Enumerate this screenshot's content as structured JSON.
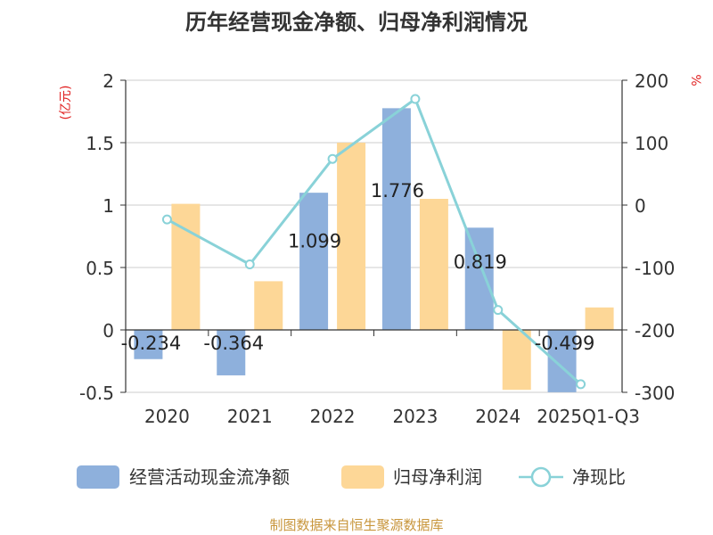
{
  "chart_data": {
    "type": "bar",
    "title": "历年经营现金净额、归母净利润情况",
    "categories": [
      "2020",
      "2021",
      "2022",
      "2023",
      "2024",
      "2025Q1-Q3"
    ],
    "y_left": {
      "unit": "(亿元)",
      "ticks": [
        "2",
        "1.5",
        "1",
        "0.5",
        "0",
        "-0.5"
      ],
      "range": [
        -0.5,
        2
      ]
    },
    "y_right": {
      "unit": "%",
      "ticks": [
        "200",
        "100",
        "0",
        "-100",
        "-200",
        "-300"
      ],
      "range": [
        -300,
        200
      ]
    },
    "series": [
      {
        "name": "经营活动现金流净额",
        "type": "bar",
        "axis": "left",
        "color": "#8eb0dc",
        "values": [
          -0.234,
          -0.364,
          1.099,
          1.776,
          0.819,
          -0.499
        ],
        "labels": [
          "-0.234",
          "-0.364",
          "1.099",
          "1.776",
          "0.819",
          "-0.499"
        ]
      },
      {
        "name": "归母净利润",
        "type": "bar",
        "axis": "left",
        "color": "#fdd797",
        "values": [
          1.01,
          0.39,
          1.5,
          1.05,
          -0.48,
          0.18
        ]
      },
      {
        "name": "净现比",
        "type": "line",
        "axis": "right",
        "color": "#89d2d8",
        "values": [
          -23,
          -95,
          74,
          170,
          -168,
          -287
        ]
      }
    ],
    "source": "制图数据来自恒生聚源数据库"
  }
}
